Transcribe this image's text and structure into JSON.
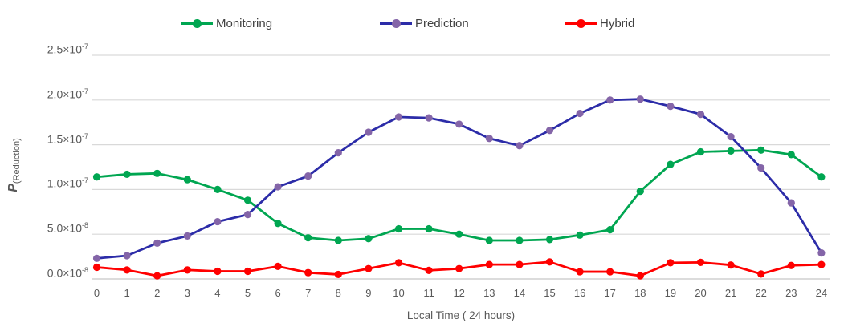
{
  "chart_data": {
    "type": "line",
    "x": [
      0,
      1,
      2,
      3,
      4,
      5,
      6,
      7,
      8,
      9,
      10,
      11,
      12,
      13,
      14,
      15,
      16,
      17,
      18,
      19,
      20,
      21,
      22,
      23,
      24
    ],
    "x_ticks": [
      "0",
      "1",
      "2",
      "3",
      "4",
      "5",
      "6",
      "7",
      "8",
      "9",
      "10",
      "11",
      "12",
      "13",
      "14",
      "15",
      "16",
      "17",
      "18",
      "19",
      "20",
      "21",
      "22",
      "23",
      "24"
    ],
    "values_unit": "1e-8",
    "ylim": [
      0,
      25
    ],
    "grid": true,
    "legend_position": "top",
    "xlabel": "Local Time ( 24 hours)",
    "ylabel": "P(Reduction)",
    "ylabel_main": "P",
    "ylabel_sub": "(Reduction)",
    "y_ticks": [
      {
        "v": 0,
        "label": "0.0×10",
        "exp": "-8"
      },
      {
        "v": 5,
        "label": "5.0×10",
        "exp": "-8"
      },
      {
        "v": 10,
        "label": "1.0×10",
        "exp": "-7"
      },
      {
        "v": 15,
        "label": "1.5×10",
        "exp": "-7"
      },
      {
        "v": 20,
        "label": "2.0×10",
        "exp": "-7"
      },
      {
        "v": 25,
        "label": "2.5×10",
        "exp": "-7"
      }
    ],
    "series": [
      {
        "name": "Monitoring",
        "color": "#00A651",
        "marker_color": "#00A651",
        "values": [
          11.4,
          11.7,
          11.8,
          11.1,
          10.0,
          8.8,
          6.2,
          4.6,
          4.3,
          4.5,
          5.6,
          5.6,
          5.0,
          4.3,
          4.3,
          4.4,
          4.9,
          5.5,
          9.8,
          12.8,
          14.2,
          14.3,
          14.4,
          13.9,
          11.4
        ]
      },
      {
        "name": "Prediction",
        "color": "#2C2CA8",
        "marker_color": "#8465A8",
        "values": [
          2.3,
          2.6,
          4.0,
          4.8,
          6.4,
          7.2,
          10.3,
          11.5,
          14.1,
          16.4,
          18.1,
          18.0,
          17.3,
          15.7,
          14.9,
          16.6,
          18.5,
          20.0,
          20.1,
          19.3,
          18.4,
          15.9,
          12.4,
          8.5,
          2.9
        ]
      },
      {
        "name": "Hybrid",
        "color": "#FF0000",
        "marker_color": "#FF0000",
        "values": [
          1.3,
          1.0,
          0.35,
          1.0,
          0.85,
          0.85,
          1.4,
          0.7,
          0.5,
          1.15,
          1.8,
          0.95,
          1.15,
          1.6,
          1.6,
          1.9,
          0.8,
          0.8,
          0.35,
          1.8,
          1.85,
          1.55,
          0.55,
          1.5,
          1.6
        ]
      }
    ],
    "colors": {
      "gridline": "#D9D9D9",
      "axis_line": "#C6C6C6",
      "tick_text": "#595959",
      "legend_text": "#404040"
    }
  }
}
